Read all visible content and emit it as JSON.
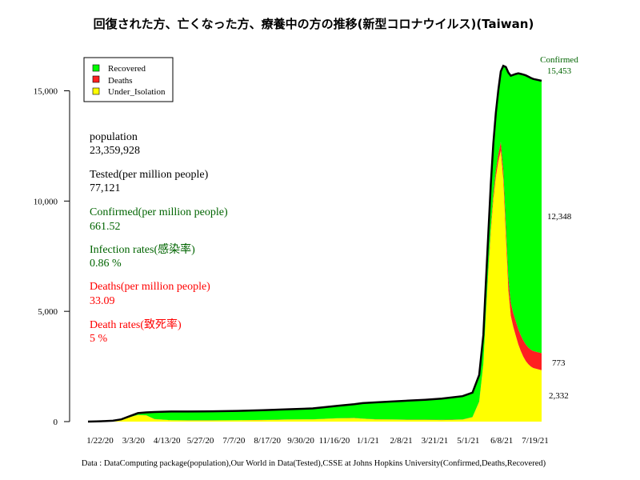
{
  "chart_data": {
    "type": "area",
    "title": "回復された方、亡くなった方、療養中の方の推移(新型コロナウイルス)(Taiwan)",
    "xlabel": "",
    "ylabel": "",
    "ylim": [
      0,
      15453
    ],
    "yticks": [
      0,
      5000,
      10000,
      15000
    ],
    "ytick_labels": [
      "0",
      "5,000",
      "10,000",
      "15,000"
    ],
    "xtick_labels": [
      "1/22/20",
      "3/3/20",
      "4/13/20",
      "5/27/20",
      "7/7/20",
      "8/17/20",
      "9/30/20",
      "11/16/20",
      "1/1/21",
      "2/8/21",
      "3/21/21",
      "5/1/21",
      "6/8/21",
      "7/19/21"
    ],
    "x": [
      0,
      10,
      20,
      30,
      40,
      60,
      70,
      80,
      100,
      120,
      150,
      180,
      210,
      240,
      270,
      300,
      320,
      330,
      345,
      365,
      385,
      405,
      425,
      450,
      462,
      470,
      475,
      478,
      481,
      484,
      487,
      490,
      493,
      496,
      499,
      502,
      505,
      508,
      511,
      514,
      517,
      520,
      523,
      526,
      529,
      532,
      535,
      540,
      545
    ],
    "series": [
      {
        "name": "Under_Isolation",
        "color": "#ffff00",
        "values": [
          1,
          10,
          20,
          40,
          100,
          300,
          280,
          110,
          60,
          50,
          50,
          60,
          70,
          90,
          100,
          150,
          160,
          130,
          100,
          90,
          80,
          80,
          70,
          90,
          200,
          900,
          2600,
          4800,
          6800,
          8600,
          10100,
          11100,
          11800,
          12300,
          11000,
          8500,
          6000,
          4800,
          4300,
          3900,
          3500,
          3200,
          2950,
          2750,
          2600,
          2500,
          2430,
          2380,
          2332
        ]
      },
      {
        "name": "Deaths",
        "color": "#ff2020",
        "values": [
          0,
          0,
          0,
          0,
          0,
          6,
          7,
          7,
          7,
          7,
          7,
          7,
          7,
          7,
          7,
          7,
          8,
          9,
          10,
          10,
          10,
          10,
          11,
          12,
          12,
          15,
          30,
          70,
          120,
          170,
          230,
          280,
          330,
          380,
          430,
          480,
          530,
          580,
          620,
          660,
          690,
          715,
          735,
          750,
          760,
          765,
          770,
          772,
          773
        ]
      },
      {
        "name": "Recovered",
        "color": "#00ff00",
        "values": [
          0,
          0,
          0,
          0,
          0,
          80,
          130,
          320,
          390,
          400,
          410,
          420,
          440,
          460,
          490,
          560,
          620,
          700,
          760,
          810,
          860,
          900,
          960,
          1050,
          1100,
          1200,
          1300,
          1400,
          1600,
          2000,
          2300,
          2620,
          2900,
          3200,
          4700,
          7100,
          9300,
          10300,
          10800,
          11200,
          11600,
          11850,
          12050,
          12200,
          12280,
          12320,
          12335,
          12345,
          12348
        ]
      }
    ],
    "confirmed": {
      "label": "Confirmed",
      "final_value": "15,453",
      "color": "#000000"
    },
    "end_labels": {
      "recovered": "12,348",
      "deaths": "773",
      "isolation": "2,332"
    },
    "legend": {
      "placement": "top-left",
      "entries": [
        {
          "label": "Recovered",
          "color": "#00ff00"
        },
        {
          "label": "Deaths",
          "color": "#ff2020"
        },
        {
          "label": "Under_Isolation",
          "color": "#ffff00"
        }
      ]
    },
    "stats": [
      {
        "label": "population",
        "value": "23,359,928",
        "color": "#000000"
      },
      {
        "label": "Tested(per million people)",
        "value": "77,121",
        "color": "#000000"
      },
      {
        "label": "Confirmed(per million people)",
        "value": "661.52",
        "color": "#006400"
      },
      {
        "label": "Infection rates(感染率)",
        "value": "0.86 %",
        "color": "#006400"
      },
      {
        "label": "Deaths(per million people)",
        "value": "33.09",
        "color": "#ff0000"
      },
      {
        "label": "Death rates(致死率)",
        "value": "5 %",
        "color": "#ff0000"
      }
    ],
    "source": "Data : DataComputing package(population),Our World in Data(Tested),CSSE at Johns Hopkins University(Confirmed,Deaths,Recovered)"
  }
}
